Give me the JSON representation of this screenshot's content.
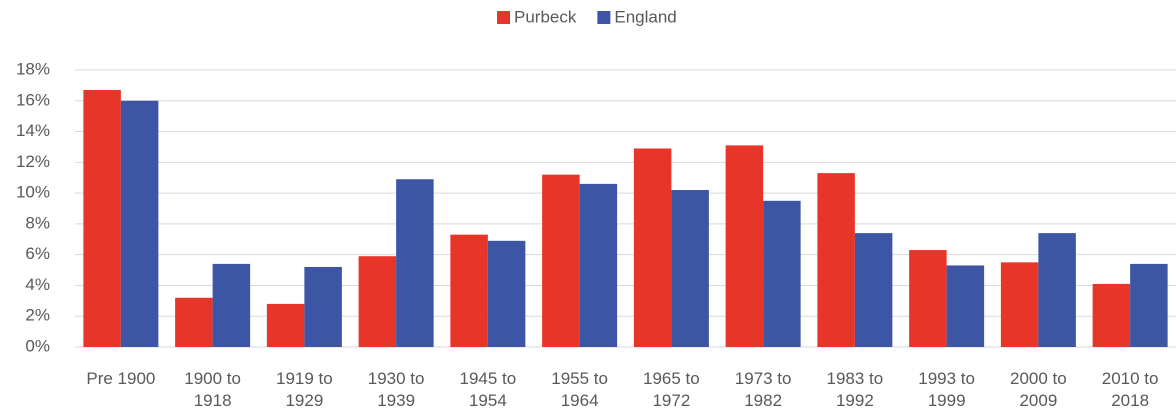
{
  "chart_data": {
    "type": "bar",
    "categories": [
      "Pre 1900",
      "1900 to 1918",
      "1919 to 1929",
      "1930 to 1939",
      "1945 to 1954",
      "1955 to 1964",
      "1965 to 1972",
      "1973 to 1982",
      "1983 to 1992",
      "1993 to 1999",
      "2000 to 2009",
      "2010 to 2018"
    ],
    "series": [
      {
        "name": "Purbeck",
        "color": "#e8352a",
        "values": [
          16.7,
          3.2,
          2.8,
          5.9,
          7.3,
          11.2,
          12.9,
          13.1,
          11.3,
          6.3,
          5.5,
          4.1
        ]
      },
      {
        "name": "England",
        "color": "#3c55a5",
        "values": [
          16.0,
          5.4,
          5.2,
          10.9,
          6.9,
          10.6,
          10.2,
          9.5,
          7.4,
          5.3,
          7.4,
          5.4
        ]
      }
    ],
    "ylim": [
      0,
      18
    ],
    "yticks": [
      {
        "value": 0,
        "label": "0%"
      },
      {
        "value": 2,
        "label": "2%"
      },
      {
        "value": 4,
        "label": "4%"
      },
      {
        "value": 6,
        "label": "6%"
      },
      {
        "value": 8,
        "label": "8%"
      },
      {
        "value": 10,
        "label": "10%"
      },
      {
        "value": 12,
        "label": "12%"
      },
      {
        "value": 14,
        "label": "14%"
      },
      {
        "value": 16,
        "label": "16%"
      },
      {
        "value": 18,
        "label": "18%"
      }
    ],
    "grid": true,
    "legend": "top"
  }
}
